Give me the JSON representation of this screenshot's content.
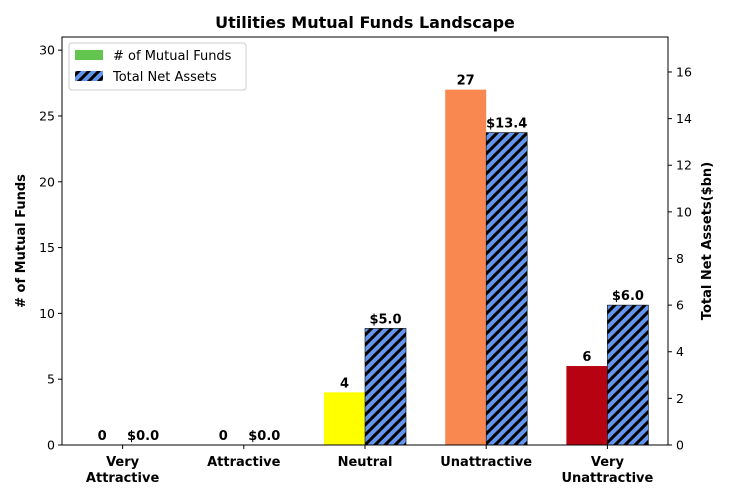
{
  "chart_data": {
    "type": "bar",
    "title": "Utilities Mutual Funds Landscape",
    "categories": [
      [
        "Very",
        "Attractive"
      ],
      [
        "Attractive"
      ],
      [
        "Neutral"
      ],
      [
        "Unattractive"
      ],
      [
        "Very",
        "Unattractive"
      ]
    ],
    "series": [
      {
        "name": "# of Mutual Funds",
        "axis": "left",
        "values": [
          0,
          0,
          4,
          27,
          6
        ],
        "labels": [
          "0",
          "0",
          "4",
          "27",
          "6"
        ],
        "colors": [
          "#63c54d",
          "#63c54d",
          "#ffff00",
          "#f98850",
          "#b60211"
        ],
        "legend_color": "#63c54d"
      },
      {
        "name": "Total Net Assets",
        "axis": "right",
        "values": [
          0.0,
          0.0,
          5.0,
          13.4,
          6.0
        ],
        "labels": [
          "$0.0",
          "$0.0",
          "$5.0",
          "$13.4",
          "$6.0"
        ],
        "color": "#6495ed",
        "hatch": "diagonal"
      }
    ],
    "ylabel_left": "# of Mutual Funds",
    "ylabel_right": "Total Net Assets($bn)",
    "ylim_left": [
      0,
      31
    ],
    "ylim_right": [
      0,
      17.5
    ],
    "yticks_left": [
      0,
      5,
      10,
      15,
      20,
      25,
      30
    ],
    "yticks_right": [
      0,
      2,
      4,
      6,
      8,
      10,
      12,
      14,
      16
    ],
    "grid": false,
    "legend_position": "top-left"
  }
}
